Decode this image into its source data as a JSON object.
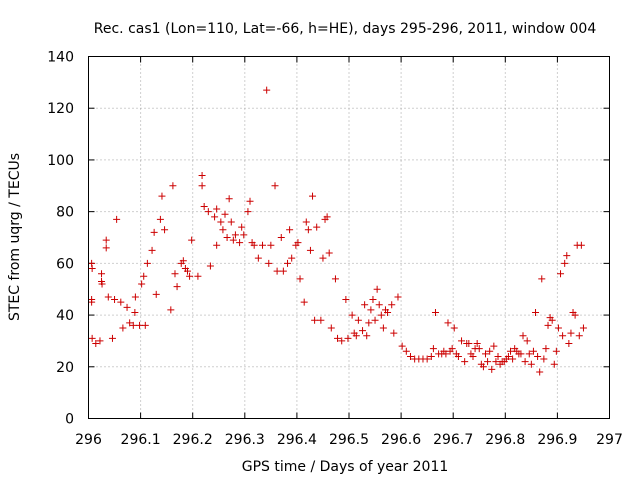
{
  "chart_data": {
    "type": "scatter",
    "title": "Rec. cas1 (Lon=110, Lat=-66, h=HE), days 295-296, 2011, window 004",
    "xlabel": "GPS time / Days of year 2011",
    "ylabel": "STEC from uqrg / TECUs",
    "xlim": [
      296,
      297
    ],
    "ylim": [
      0,
      140
    ],
    "xticks": [
      "296",
      "296.1",
      "296.2",
      "296.3",
      "296.4",
      "296.5",
      "296.6",
      "296.7",
      "296.8",
      "296.9",
      "297"
    ],
    "yticks": [
      "0",
      "20",
      "40",
      "60",
      "80",
      "100",
      "120",
      "140"
    ],
    "grid": true,
    "marker": "+",
    "color": "#cc0000",
    "series": [
      {
        "name": "STEC",
        "points": [
          [
            296.006,
            60
          ],
          [
            296.007,
            58
          ],
          [
            296.006,
            46
          ],
          [
            296.006,
            45
          ],
          [
            296.007,
            31
          ],
          [
            296.014,
            29
          ],
          [
            296.022,
            30
          ],
          [
            296.025,
            53
          ],
          [
            296.025,
            56
          ],
          [
            296.026,
            52
          ],
          [
            296.034,
            69
          ],
          [
            296.034,
            66
          ],
          [
            296.038,
            47
          ],
          [
            296.046,
            31
          ],
          [
            296.05,
            46
          ],
          [
            296.054,
            77
          ],
          [
            296.062,
            45
          ],
          [
            296.066,
            35
          ],
          [
            296.074,
            43
          ],
          [
            296.079,
            37
          ],
          [
            296.086,
            36
          ],
          [
            296.089,
            41
          ],
          [
            296.09,
            47
          ],
          [
            296.098,
            36
          ],
          [
            296.102,
            52
          ],
          [
            296.106,
            55
          ],
          [
            296.109,
            36
          ],
          [
            296.113,
            60
          ],
          [
            296.122,
            65
          ],
          [
            296.126,
            72
          ],
          [
            296.13,
            48
          ],
          [
            296.138,
            77
          ],
          [
            296.141,
            86
          ],
          [
            296.146,
            73
          ],
          [
            296.158,
            42
          ],
          [
            296.162,
            90
          ],
          [
            296.166,
            56
          ],
          [
            296.17,
            51
          ],
          [
            296.178,
            60
          ],
          [
            296.182,
            61
          ],
          [
            296.186,
            58
          ],
          [
            296.19,
            57
          ],
          [
            296.194,
            55
          ],
          [
            296.198,
            69
          ],
          [
            296.21,
            55
          ],
          [
            296.218,
            94
          ],
          [
            296.218,
            90
          ],
          [
            296.222,
            82
          ],
          [
            296.23,
            80
          ],
          [
            296.234,
            59
          ],
          [
            296.242,
            78
          ],
          [
            296.246,
            81
          ],
          [
            296.246,
            67
          ],
          [
            296.254,
            76
          ],
          [
            296.258,
            73
          ],
          [
            296.262,
            79
          ],
          [
            296.266,
            70
          ],
          [
            296.27,
            85
          ],
          [
            296.274,
            76
          ],
          [
            296.278,
            69
          ],
          [
            296.282,
            71
          ],
          [
            296.29,
            68
          ],
          [
            296.294,
            74
          ],
          [
            296.298,
            71
          ],
          [
            296.306,
            80
          ],
          [
            296.31,
            84
          ],
          [
            296.314,
            68
          ],
          [
            296.318,
            67
          ],
          [
            296.326,
            62
          ],
          [
            296.334,
            67
          ],
          [
            296.342,
            127
          ],
          [
            296.346,
            60
          ],
          [
            296.35,
            67
          ],
          [
            296.358,
            90
          ],
          [
            296.362,
            57
          ],
          [
            296.37,
            70
          ],
          [
            296.374,
            57
          ],
          [
            296.382,
            60
          ],
          [
            296.386,
            73
          ],
          [
            296.39,
            62
          ],
          [
            296.398,
            67
          ],
          [
            296.402,
            68
          ],
          [
            296.406,
            54
          ],
          [
            296.414,
            45
          ],
          [
            296.418,
            76
          ],
          [
            296.422,
            73
          ],
          [
            296.426,
            65
          ],
          [
            296.43,
            86
          ],
          [
            296.434,
            38
          ],
          [
            296.438,
            74
          ],
          [
            296.446,
            38
          ],
          [
            296.45,
            62
          ],
          [
            296.454,
            77
          ],
          [
            296.458,
            78
          ],
          [
            296.462,
            64
          ],
          [
            296.466,
            35
          ],
          [
            296.474,
            54
          ],
          [
            296.478,
            31
          ],
          [
            296.486,
            30
          ],
          [
            296.494,
            46
          ],
          [
            296.498,
            31
          ],
          [
            296.506,
            40
          ],
          [
            296.51,
            33
          ],
          [
            296.514,
            32
          ],
          [
            296.518,
            38
          ],
          [
            296.526,
            34
          ],
          [
            296.53,
            44
          ],
          [
            296.534,
            32
          ],
          [
            296.538,
            37
          ],
          [
            296.542,
            42
          ],
          [
            296.546,
            46
          ],
          [
            296.55,
            38
          ],
          [
            296.554,
            50
          ],
          [
            296.558,
            44
          ],
          [
            296.562,
            40
          ],
          [
            296.566,
            35
          ],
          [
            296.57,
            42
          ],
          [
            296.574,
            41
          ],
          [
            296.582,
            44
          ],
          [
            296.586,
            33
          ],
          [
            296.594,
            47
          ],
          [
            296.602,
            28
          ],
          [
            296.61,
            26
          ],
          [
            296.618,
            24
          ],
          [
            296.626,
            23
          ],
          [
            296.634,
            23
          ],
          [
            296.642,
            23
          ],
          [
            296.65,
            23
          ],
          [
            296.658,
            24
          ],
          [
            296.662,
            27
          ],
          [
            296.666,
            41
          ],
          [
            296.672,
            25
          ],
          [
            296.678,
            25
          ],
          [
            296.682,
            26
          ],
          [
            296.686,
            25
          ],
          [
            296.69,
            37
          ],
          [
            296.694,
            26
          ],
          [
            296.698,
            27
          ],
          [
            296.702,
            35
          ],
          [
            296.706,
            25
          ],
          [
            296.71,
            24
          ],
          [
            296.716,
            30
          ],
          [
            296.722,
            22
          ],
          [
            296.726,
            29
          ],
          [
            296.73,
            29
          ],
          [
            296.734,
            25
          ],
          [
            296.738,
            24
          ],
          [
            296.742,
            27
          ],
          [
            296.746,
            29
          ],
          [
            296.75,
            27
          ],
          [
            296.754,
            21
          ],
          [
            296.758,
            20
          ],
          [
            296.762,
            25
          ],
          [
            296.766,
            22
          ],
          [
            296.77,
            26
          ],
          [
            296.774,
            19
          ],
          [
            296.778,
            28
          ],
          [
            296.782,
            22
          ],
          [
            296.786,
            24
          ],
          [
            296.79,
            21
          ],
          [
            296.794,
            22
          ],
          [
            296.798,
            22
          ],
          [
            296.802,
            23
          ],
          [
            296.806,
            24
          ],
          [
            296.81,
            26
          ],
          [
            296.814,
            23
          ],
          [
            296.818,
            27
          ],
          [
            296.822,
            26
          ],
          [
            296.826,
            25
          ],
          [
            296.83,
            25
          ],
          [
            296.834,
            32
          ],
          [
            296.838,
            22
          ],
          [
            296.842,
            30
          ],
          [
            296.846,
            25
          ],
          [
            296.85,
            21
          ],
          [
            296.854,
            26
          ],
          [
            296.858,
            41
          ],
          [
            296.862,
            24
          ],
          [
            296.866,
            18
          ],
          [
            296.87,
            54
          ],
          [
            296.874,
            23
          ],
          [
            296.878,
            27
          ],
          [
            296.882,
            36
          ],
          [
            296.886,
            39
          ],
          [
            296.89,
            38
          ],
          [
            296.894,
            21
          ],
          [
            296.898,
            26
          ],
          [
            296.902,
            35
          ],
          [
            296.906,
            56
          ],
          [
            296.91,
            32
          ],
          [
            296.914,
            60
          ],
          [
            296.918,
            63
          ],
          [
            296.922,
            29
          ],
          [
            296.926,
            33
          ],
          [
            296.93,
            41
          ],
          [
            296.934,
            40
          ],
          [
            296.938,
            67
          ],
          [
            296.942,
            32
          ],
          [
            296.946,
            67
          ],
          [
            296.95,
            35
          ]
        ]
      }
    ]
  }
}
